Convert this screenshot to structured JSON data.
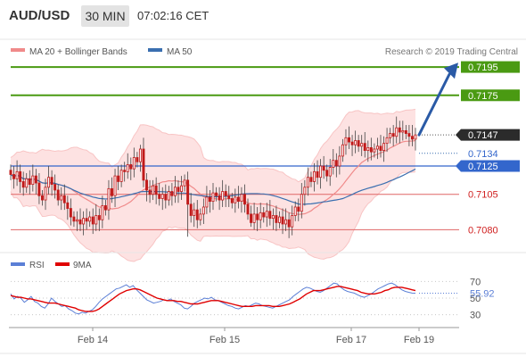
{
  "header": {
    "symbol": "AUD/USD",
    "timeframe": "30 MIN",
    "time": "07:02:16 CET"
  },
  "main_legend": {
    "ma20_label": "MA 20 + Bollinger Bands",
    "ma50_label": "MA 50",
    "credit": "Research © 2019 Trading Central"
  },
  "rsi_legend": {
    "rsi_label": "RSI",
    "ma9_label": "9MA"
  },
  "colors": {
    "candle": "#c01a1a",
    "bollinger_fill": "#fde2e2",
    "ma20": "#f08a8a",
    "ma50": "#3a6fb0",
    "pivot_green": "#4a9a12",
    "support_red": "#e06666",
    "current_tag": "#2b2b2b",
    "ma50_tag": "#3366cc",
    "resistance_tag": "#4a9a12",
    "arrow": "#2a5aa6",
    "rsi_line": "#5b7fd6",
    "rsi_ma": "#e00000"
  },
  "icons": {
    "forecast_arrow": "arrow-up-right-icon"
  },
  "chart_data": [
    {
      "type": "candlestick",
      "panel": "price",
      "x_tick_labels": [
        "Feb 14",
        "Feb 15",
        "Feb 17",
        "Feb 19"
      ],
      "ylim": [
        0.7072,
        0.7202
      ],
      "levels": [
        {
          "value": 0.7195,
          "label": "0.7195",
          "kind": "resistance",
          "color": "#4a9a12"
        },
        {
          "value": 0.7175,
          "label": "0.7175",
          "kind": "resistance",
          "color": "#4a9a12"
        },
        {
          "value": 0.7147,
          "label": "0.7147",
          "kind": "current",
          "color": "#2b2b2b"
        },
        {
          "value": 0.7134,
          "label": "0.7134",
          "kind": "ma50",
          "color": "#3366cc"
        },
        {
          "value": 0.7125,
          "label": "0.7125",
          "kind": "pivot",
          "color": "#3366cc"
        },
        {
          "value": 0.7105,
          "label": "0.7105",
          "kind": "support",
          "color": "#e06666"
        },
        {
          "value": 0.708,
          "label": "0.7080",
          "kind": "support",
          "color": "#e06666"
        }
      ],
      "close": [
        0.7119,
        0.7116,
        0.7121,
        0.7114,
        0.711,
        0.7116,
        0.7112,
        0.7118,
        0.7113,
        0.7104,
        0.7101,
        0.711,
        0.7117,
        0.7112,
        0.7108,
        0.7101,
        0.7104,
        0.7099,
        0.7095,
        0.7089,
        0.7086,
        0.7087,
        0.7084,
        0.7088,
        0.7086,
        0.7089,
        0.7084,
        0.709,
        0.7087,
        0.7097,
        0.7094,
        0.7109,
        0.7104,
        0.7118,
        0.7114,
        0.7122,
        0.7121,
        0.7126,
        0.7123,
        0.7131,
        0.7128,
        0.7137,
        0.7115,
        0.7108,
        0.7105,
        0.7111,
        0.7105,
        0.7102,
        0.7105,
        0.7101,
        0.7107,
        0.7104,
        0.711,
        0.7107,
        0.7111,
        0.7115,
        0.7098,
        0.709,
        0.7094,
        0.7087,
        0.7091,
        0.7096,
        0.7103,
        0.71,
        0.7106,
        0.7104,
        0.7101,
        0.7107,
        0.7104,
        0.7102,
        0.7099,
        0.7103,
        0.71,
        0.7105,
        0.7098,
        0.7091,
        0.7085,
        0.7091,
        0.7087,
        0.7092,
        0.7089,
        0.7093,
        0.7088,
        0.709,
        0.7085,
        0.7089,
        0.7084,
        0.7087,
        0.7082,
        0.709,
        0.7096,
        0.7093,
        0.7105,
        0.711,
        0.7117,
        0.7114,
        0.7121,
        0.7117,
        0.7125,
        0.7122,
        0.7118,
        0.7124,
        0.7129,
        0.7125,
        0.7132,
        0.714,
        0.7145,
        0.7142,
        0.714,
        0.7143,
        0.7139,
        0.7141,
        0.7136,
        0.7138,
        0.7135,
        0.7137,
        0.7139,
        0.7136,
        0.7141,
        0.7145,
        0.7148,
        0.7146,
        0.7152,
        0.7149,
        0.715,
        0.7148,
        0.7146,
        0.7144,
        0.7147
      ]
    },
    {
      "type": "line",
      "panel": "rsi",
      "ylim": [
        20,
        80
      ],
      "y_ticks": [
        30,
        50,
        70
      ],
      "current_value": 55.92,
      "series": [
        {
          "name": "RSI",
          "values": [
            55,
            49,
            52,
            50,
            45,
            48,
            52,
            46,
            44,
            40,
            38,
            43,
            50,
            46,
            43,
            40,
            41,
            37,
            35,
            32,
            31,
            33,
            32,
            34,
            36,
            40,
            45,
            49,
            52,
            55,
            58,
            61,
            62,
            64,
            66,
            63,
            65,
            60,
            56,
            52,
            48,
            46,
            44,
            45,
            46,
            48,
            47,
            49,
            46,
            44,
            42,
            38,
            37,
            40,
            44,
            46,
            48,
            50,
            49,
            51,
            48,
            47,
            45,
            43,
            41,
            40,
            38,
            37,
            39,
            41,
            40,
            42,
            44,
            43,
            41,
            40,
            39,
            38,
            40,
            42,
            44,
            46,
            48,
            52,
            55,
            58,
            61,
            63,
            62,
            60,
            58,
            57,
            59,
            62,
            65,
            68,
            67,
            63,
            60,
            58,
            57,
            56,
            54,
            52,
            51,
            53,
            55,
            58,
            61,
            63,
            65,
            67,
            68,
            66,
            63,
            60,
            58,
            57,
            56,
            55.92
          ]
        },
        {
          "name": "9MA",
          "values": [
            53,
            52,
            51,
            51,
            50,
            49,
            49,
            48,
            47,
            46,
            45,
            44,
            44,
            44,
            43,
            42,
            41,
            40,
            39,
            38,
            36,
            35,
            34,
            34,
            34,
            35,
            37,
            40,
            43,
            46,
            49,
            52,
            55,
            57,
            59,
            60,
            61,
            61,
            60,
            58,
            56,
            54,
            52,
            50,
            49,
            48,
            47,
            47,
            47,
            46,
            46,
            45,
            44,
            43,
            43,
            43,
            44,
            45,
            46,
            47,
            47,
            47,
            46,
            45,
            44,
            43,
            42,
            41,
            40,
            40,
            40,
            40,
            41,
            41,
            41,
            41,
            41,
            40,
            40,
            40,
            41,
            42,
            43,
            45,
            47,
            49,
            52,
            55,
            57,
            59,
            59,
            59,
            60,
            61,
            62,
            63,
            64,
            64,
            63,
            62,
            61,
            60,
            59,
            57,
            56,
            55,
            55,
            55,
            56,
            57,
            59,
            60,
            62,
            63,
            63,
            63,
            62,
            61,
            60,
            59
          ]
        }
      ]
    }
  ]
}
